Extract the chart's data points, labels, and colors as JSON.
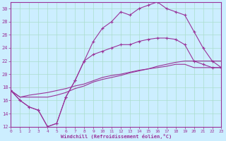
{
  "xlabel": "Windchill (Refroidissement éolien,°C)",
  "background_color": "#cceeff",
  "grid_color": "#aaddcc",
  "line_color": "#993399",
  "xlim": [
    0,
    23
  ],
  "ylim": [
    12,
    31
  ],
  "xticks": [
    0,
    1,
    2,
    3,
    4,
    5,
    6,
    7,
    8,
    9,
    10,
    11,
    12,
    13,
    14,
    15,
    16,
    17,
    18,
    19,
    20,
    21,
    22,
    23
  ],
  "yticks": [
    12,
    14,
    16,
    18,
    20,
    22,
    24,
    26,
    28,
    30
  ],
  "hours": [
    0,
    1,
    2,
    3,
    4,
    5,
    6,
    7,
    8,
    9,
    10,
    11,
    12,
    13,
    14,
    15,
    16,
    17,
    18,
    19,
    20,
    21,
    22,
    23
  ],
  "line1_y": [
    17.5,
    16,
    15,
    14.5,
    12,
    12.5,
    16.5,
    19,
    22,
    25,
    27,
    28,
    29.5,
    29,
    30,
    30.5,
    31,
    30,
    29.5,
    29,
    26.5,
    24,
    22,
    21
  ],
  "line2_y": [
    17.5,
    16,
    15,
    14.5,
    12,
    12.5,
    16.5,
    19,
    22,
    23,
    23.5,
    24,
    24.5,
    24.5,
    25,
    25.3,
    25.5,
    25.5,
    25.3,
    24.5,
    22,
    21.5,
    21,
    21
  ],
  "line3_y": [
    17.5,
    16.5,
    16.5,
    16.5,
    16.5,
    16.8,
    17.2,
    17.8,
    18.2,
    18.8,
    19.2,
    19.5,
    19.8,
    20.2,
    20.5,
    20.8,
    21.2,
    21.5,
    21.8,
    22,
    22,
    22,
    22,
    22
  ],
  "line4_y": [
    17.5,
    16.5,
    16.8,
    17,
    17.2,
    17.5,
    17.8,
    18.2,
    18.5,
    19,
    19.5,
    19.8,
    20,
    20.3,
    20.6,
    20.8,
    21,
    21.2,
    21.5,
    21.5,
    21,
    21,
    21,
    21
  ]
}
